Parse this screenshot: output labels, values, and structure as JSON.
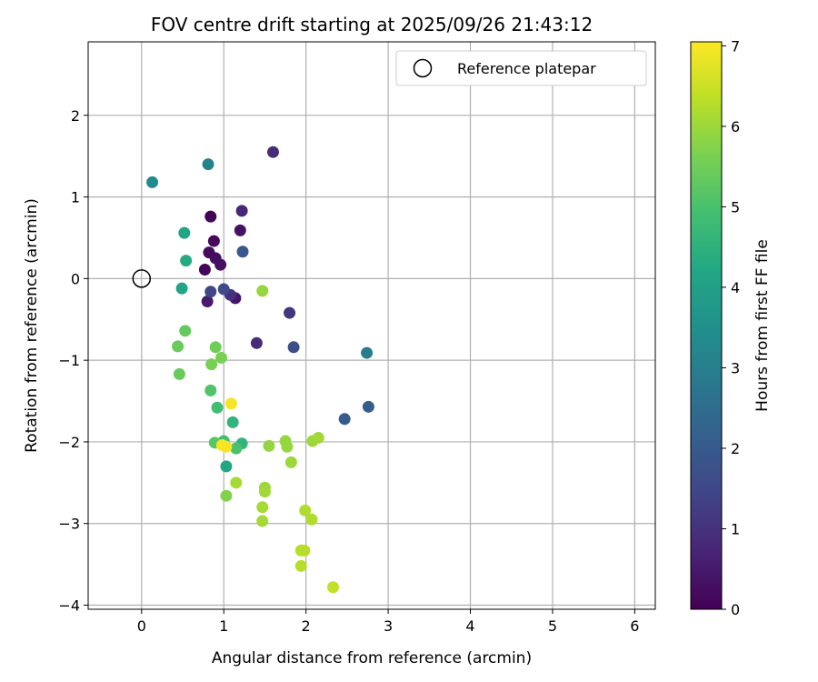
{
  "chart_data": {
    "type": "scatter",
    "title": "FOV centre drift starting at 2025/09/26 21:43:12",
    "xlabel": "Angular distance from reference (arcmin)",
    "ylabel": "Rotation from reference (arcmin)",
    "xlim": [
      -0.65,
      6.25
    ],
    "ylim": [
      -4.05,
      2.9
    ],
    "xticks": [
      0,
      1,
      2,
      3,
      4,
      5,
      6
    ],
    "yticks": [
      -4,
      -3,
      -2,
      -1,
      0,
      1,
      2
    ],
    "xtick_labels": [
      "0",
      "1",
      "2",
      "3",
      "4",
      "5",
      "6"
    ],
    "ytick_labels": [
      "−4",
      "−3",
      "−2",
      "−1",
      "0",
      "1",
      "2"
    ],
    "grid": true,
    "legend": {
      "placement": "top-right",
      "entries": [
        "Reference platepar"
      ]
    },
    "reference_point": {
      "x": 0,
      "y": 0,
      "label": "Reference platepar"
    },
    "colorbar": {
      "label": "Hours from first FF file",
      "range": [
        0,
        7.05
      ],
      "ticks": [
        0,
        1,
        2,
        3,
        4,
        5,
        6,
        7
      ],
      "tick_labels": [
        "0",
        "1",
        "2",
        "3",
        "4",
        "5",
        "6",
        "7"
      ],
      "colormap": "viridis"
    },
    "points": [
      {
        "x": 0.84,
        "y": 0.76,
        "t": 0.05
      },
      {
        "x": 0.88,
        "y": 0.46,
        "t": 0.15
      },
      {
        "x": 0.82,
        "y": 0.32,
        "t": 0.2
      },
      {
        "x": 0.9,
        "y": 0.25,
        "t": 0.25
      },
      {
        "x": 0.96,
        "y": 0.17,
        "t": 0.3
      },
      {
        "x": 0.77,
        "y": 0.11,
        "t": 0.1
      },
      {
        "x": 1.2,
        "y": 0.59,
        "t": 0.35
      },
      {
        "x": 1.14,
        "y": -0.24,
        "t": 0.4
      },
      {
        "x": 0.8,
        "y": -0.28,
        "t": 0.5
      },
      {
        "x": 1.22,
        "y": 0.83,
        "t": 0.8
      },
      {
        "x": 1.6,
        "y": 1.55,
        "t": 0.9
      },
      {
        "x": 1.08,
        "y": -0.2,
        "t": 1.0
      },
      {
        "x": 1.4,
        "y": -0.79,
        "t": 0.9
      },
      {
        "x": 1.8,
        "y": -0.42,
        "t": 1.1
      },
      {
        "x": 0.84,
        "y": -0.16,
        "t": 1.5
      },
      {
        "x": 1.0,
        "y": -0.13,
        "t": 1.6
      },
      {
        "x": 1.85,
        "y": -0.84,
        "t": 1.7
      },
      {
        "x": 1.23,
        "y": 0.33,
        "t": 1.9
      },
      {
        "x": 2.47,
        "y": -1.72,
        "t": 2.0
      },
      {
        "x": 2.76,
        "y": -1.57,
        "t": 2.1
      },
      {
        "x": 2.74,
        "y": -0.91,
        "t": 2.9
      },
      {
        "x": 0.81,
        "y": 1.4,
        "t": 3.1
      },
      {
        "x": 0.13,
        "y": 1.18,
        "t": 3.3
      },
      {
        "x": 0.52,
        "y": 0.56,
        "t": 4.1
      },
      {
        "x": 0.54,
        "y": 0.22,
        "t": 4.3
      },
      {
        "x": 0.49,
        "y": -0.12,
        "t": 4.1
      },
      {
        "x": 1.03,
        "y": -2.3,
        "t": 4.2
      },
      {
        "x": 1.11,
        "y": -1.76,
        "t": 4.6
      },
      {
        "x": 1.22,
        "y": -2.02,
        "t": 4.6
      },
      {
        "x": 0.92,
        "y": -1.58,
        "t": 4.9
      },
      {
        "x": 1.0,
        "y": -1.99,
        "t": 4.9
      },
      {
        "x": 1.15,
        "y": -2.08,
        "t": 5.0
      },
      {
        "x": 0.84,
        "y": -1.37,
        "t": 5.1
      },
      {
        "x": 0.89,
        "y": -2.01,
        "t": 5.2
      },
      {
        "x": 0.53,
        "y": -0.64,
        "t": 5.35
      },
      {
        "x": 0.46,
        "y": -1.17,
        "t": 5.4
      },
      {
        "x": 0.44,
        "y": -0.83,
        "t": 5.4
      },
      {
        "x": 0.9,
        "y": -0.84,
        "t": 5.5
      },
      {
        "x": 0.85,
        "y": -1.05,
        "t": 5.6
      },
      {
        "x": 0.97,
        "y": -0.97,
        "t": 5.6
      },
      {
        "x": 1.03,
        "y": -2.66,
        "t": 5.7
      },
      {
        "x": 1.47,
        "y": -0.15,
        "t": 5.95
      },
      {
        "x": 1.55,
        "y": -2.05,
        "t": 5.9
      },
      {
        "x": 1.75,
        "y": -1.99,
        "t": 5.95
      },
      {
        "x": 1.77,
        "y": -2.06,
        "t": 5.95
      },
      {
        "x": 1.82,
        "y": -2.25,
        "t": 6.0
      },
      {
        "x": 1.5,
        "y": -2.56,
        "t": 6.0
      },
      {
        "x": 1.5,
        "y": -2.61,
        "t": 6.05
      },
      {
        "x": 1.47,
        "y": -2.8,
        "t": 6.1
      },
      {
        "x": 1.47,
        "y": -2.97,
        "t": 6.1
      },
      {
        "x": 1.15,
        "y": -2.5,
        "t": 6.1
      },
      {
        "x": 2.08,
        "y": -1.99,
        "t": 6.0
      },
      {
        "x": 2.15,
        "y": -1.95,
        "t": 6.05
      },
      {
        "x": 1.99,
        "y": -2.84,
        "t": 6.2
      },
      {
        "x": 2.07,
        "y": -2.95,
        "t": 6.2
      },
      {
        "x": 1.94,
        "y": -3.33,
        "t": 6.3
      },
      {
        "x": 1.98,
        "y": -3.33,
        "t": 6.3
      },
      {
        "x": 1.94,
        "y": -3.52,
        "t": 6.3
      },
      {
        "x": 2.33,
        "y": -3.78,
        "t": 6.4
      },
      {
        "x": 0.98,
        "y": -2.04,
        "t": 7.0
      },
      {
        "x": 1.03,
        "y": -2.06,
        "t": 7.0
      },
      {
        "x": 1.09,
        "y": -1.53,
        "t": 6.95
      }
    ]
  }
}
